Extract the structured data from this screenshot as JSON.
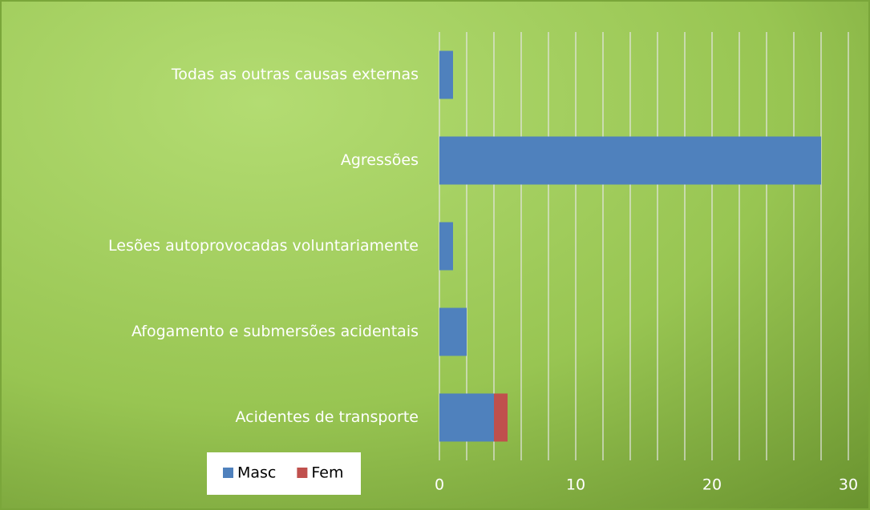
{
  "chart_data": {
    "type": "bar",
    "orientation": "horizontal",
    "stacked": true,
    "categories": [
      "Acidentes de transporte",
      "Afogamento e submersões acidentais",
      "Lesões autoprovocadas voluntariamente",
      "Agressões",
      "Todas as outras causas externas"
    ],
    "series": [
      {
        "name": "Masc",
        "color": "#4f81bd",
        "values": [
          4,
          2,
          1,
          28,
          1
        ]
      },
      {
        "name": "Fem",
        "color": "#c0504d",
        "values": [
          1,
          0,
          0,
          0,
          0
        ]
      }
    ],
    "xlim": [
      0,
      30
    ],
    "xticks": [
      0,
      10,
      20,
      30
    ],
    "xgrid": [
      0,
      2,
      4,
      6,
      8,
      10,
      12,
      14,
      16,
      18,
      20,
      22,
      24,
      26,
      28,
      30
    ],
    "grid": true,
    "legend": "bottom-left"
  }
}
